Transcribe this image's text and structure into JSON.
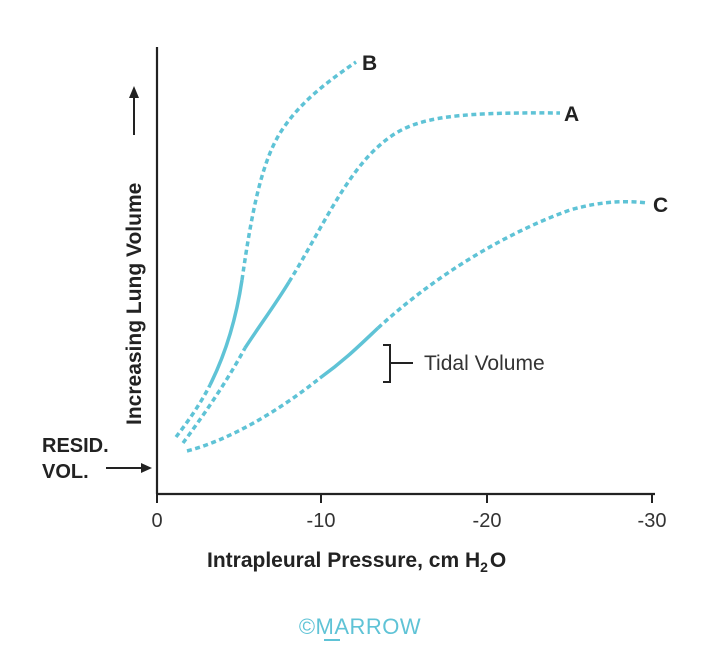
{
  "axes": {
    "xlabel_main": "Intrapleural Pressure, cm H",
    "xlabel_sub": "2",
    "xlabel_end": "O",
    "ylabel": "Increasing Lung Volume",
    "x_ticks": [
      "0",
      "-10",
      "-20",
      "-30"
    ]
  },
  "annotations": {
    "resid_line1": "RESID.",
    "resid_line2": "VOL.",
    "tidal_volume": "Tidal Volume"
  },
  "curves": {
    "A": "A",
    "B": "B",
    "C": "C"
  },
  "watermark": "©MARROW",
  "colors": {
    "curve": "#5fc3d6",
    "axis": "#222222"
  }
}
